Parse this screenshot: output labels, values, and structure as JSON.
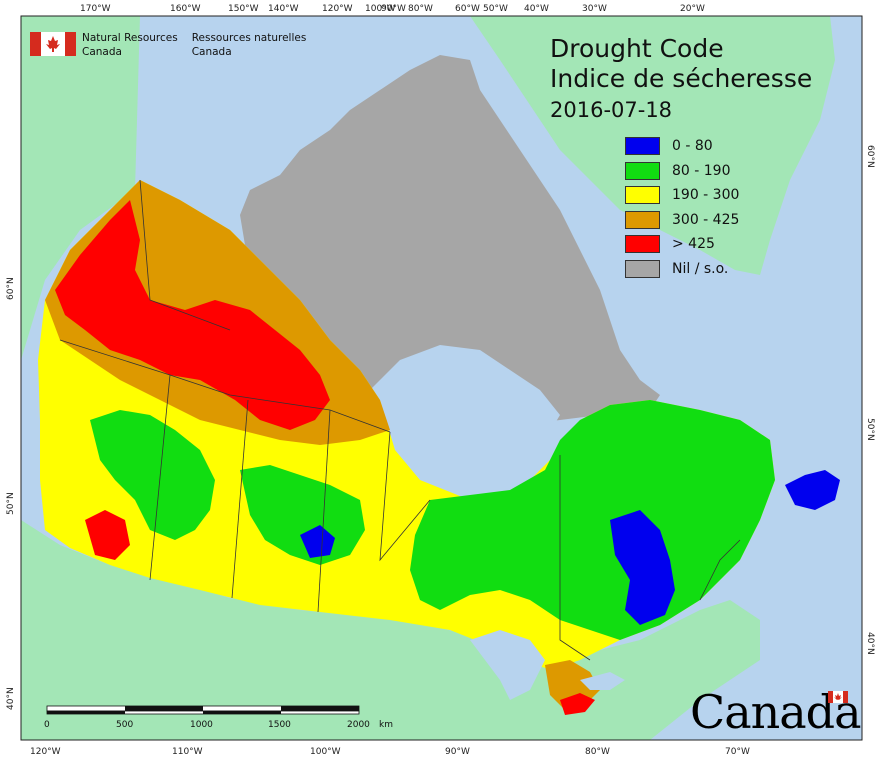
{
  "title_en": "Drought Code",
  "title_fr": "Indice de sécheresse",
  "date": "2016-07-18",
  "legend": [
    {
      "label": "0 - 80",
      "color": "#0000ee",
      "icon": "swatch-blue"
    },
    {
      "label": "80 - 190",
      "color": "#11dd11",
      "icon": "swatch-green"
    },
    {
      "label": "190 - 300",
      "color": "#ffff00",
      "icon": "swatch-yellow"
    },
    {
      "label": "300 - 425",
      "color": "#dd9900",
      "icon": "swatch-orange"
    },
    {
      "label": "> 425",
      "color": "#ff0000",
      "icon": "swatch-red"
    },
    {
      "label": "Nil / s.o.",
      "color": "#a6a6a6",
      "icon": "swatch-gray"
    }
  ],
  "org_en": [
    "Natural Resources",
    "Canada"
  ],
  "org_fr": [
    "Ressources naturelles",
    "Canada"
  ],
  "wordmark": "Canada",
  "top_ticks": [
    "170°W",
    "160°W",
    "150°W",
    "140°W",
    "120°W",
    "100°W",
    "90°W",
    "80°W",
    "60°W",
    "50°W",
    "40°W",
    "30°W",
    "20°W"
  ],
  "bottom_ticks": [
    "120°W",
    "110°W",
    "100°W",
    "90°W",
    "80°W",
    "70°W"
  ],
  "left_ticks": [
    "60°N",
    "50°N",
    "40°N"
  ],
  "right_ticks": [
    "60°N",
    "50°N",
    "40°N"
  ],
  "scale_labels": [
    "0",
    "500",
    "1000",
    "1500",
    "2000"
  ],
  "scale_unit": "km",
  "colors": {
    "ocean": "#b7d3ee",
    "land_outside": "#a3e6b6",
    "nil": "#a6a6a6",
    "border": "#333333"
  }
}
